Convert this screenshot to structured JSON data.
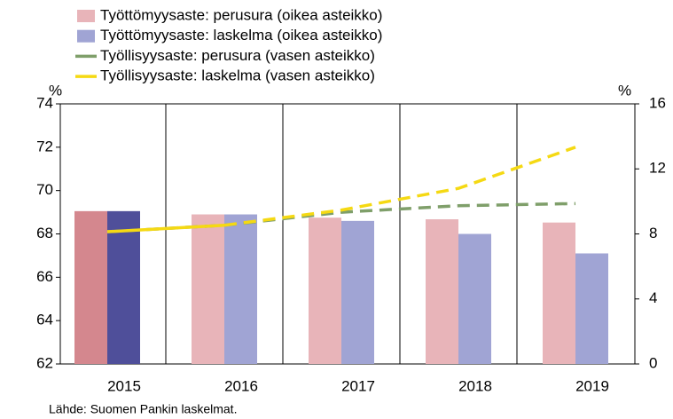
{
  "chart_data": {
    "type": "bar_line",
    "categories": [
      "2015",
      "2016",
      "2017",
      "2018",
      "2019"
    ],
    "ylim": [
      62,
      74
    ],
    "yticks": [
      62,
      64,
      66,
      68,
      70,
      72,
      74
    ],
    "y_unit": "%",
    "y2lim": [
      0,
      16
    ],
    "y2ticks": [
      0,
      4,
      8,
      12,
      16
    ],
    "y2_unit": "%",
    "highlight": "2015",
    "series": [
      {
        "name": "Työttömyysaste: perusura (oikea asteikko)",
        "kind": "bar",
        "axis": "y2",
        "color": "#e8b4b9",
        "highlight_color": "#d4878e",
        "values": [
          9.4,
          9.2,
          9.0,
          8.9,
          8.7
        ]
      },
      {
        "name": "Työttömyysaste: laskelma (oikea asteikko)",
        "kind": "bar",
        "axis": "y2",
        "color": "#a0a4d4",
        "highlight_color": "#4f4f9a",
        "values": [
          9.4,
          9.2,
          8.8,
          8.0,
          6.8
        ]
      },
      {
        "name": "Työllisyysaste: perusura (vasen asteikko)",
        "kind": "line",
        "color": "#7f9f6a",
        "dashed": true,
        "values": [
          68.1,
          68.4,
          69.0,
          69.3,
          69.4
        ]
      },
      {
        "name": "Työllisyysaste: laskelma (vasen asteikko)",
        "kind": "line",
        "color": "#f5d913",
        "dashed_after": "2016",
        "values": [
          68.1,
          68.4,
          69.1,
          70.1,
          72.0
        ]
      }
    ],
    "source": "Lähde: Suomen Pankin laskelmat."
  }
}
